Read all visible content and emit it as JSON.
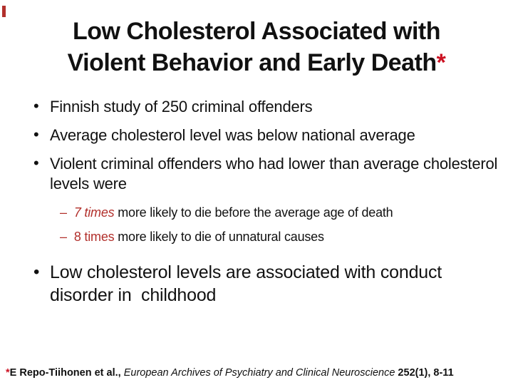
{
  "slide": {
    "title": {
      "line1": "Low Cholesterol Associated with",
      "line2": "Violent Behavior and Early Death",
      "asterisk": "*"
    },
    "bullets": [
      {
        "text": "Finnish study of 250 criminal offenders"
      },
      {
        "text": "Average cholesterol level was below national average"
      },
      {
        "text": "Violent criminal offenders who had lower than average cholesterol levels were"
      }
    ],
    "sub_bullets": [
      {
        "dash": "–",
        "highlight": "7 times",
        "rest": " more likely to die before the average age of death"
      },
      {
        "dash": "–",
        "highlight": "8 times",
        "rest": " more likely to die of unnatural causes"
      }
    ],
    "closing_bullet": "Low cholesterol levels are associated with conduct disorder in  childhood",
    "footnote": {
      "asterisk": "*",
      "authors": "E Repo-Tiihonen et al., ",
      "journal": "European Archives of Psychiatry and Clinical Neuroscience",
      "citation": " 252(1), 8-11"
    },
    "colors": {
      "accent_red": "#cc1122",
      "brick_red": "#b2302c",
      "text": "#111111"
    }
  }
}
